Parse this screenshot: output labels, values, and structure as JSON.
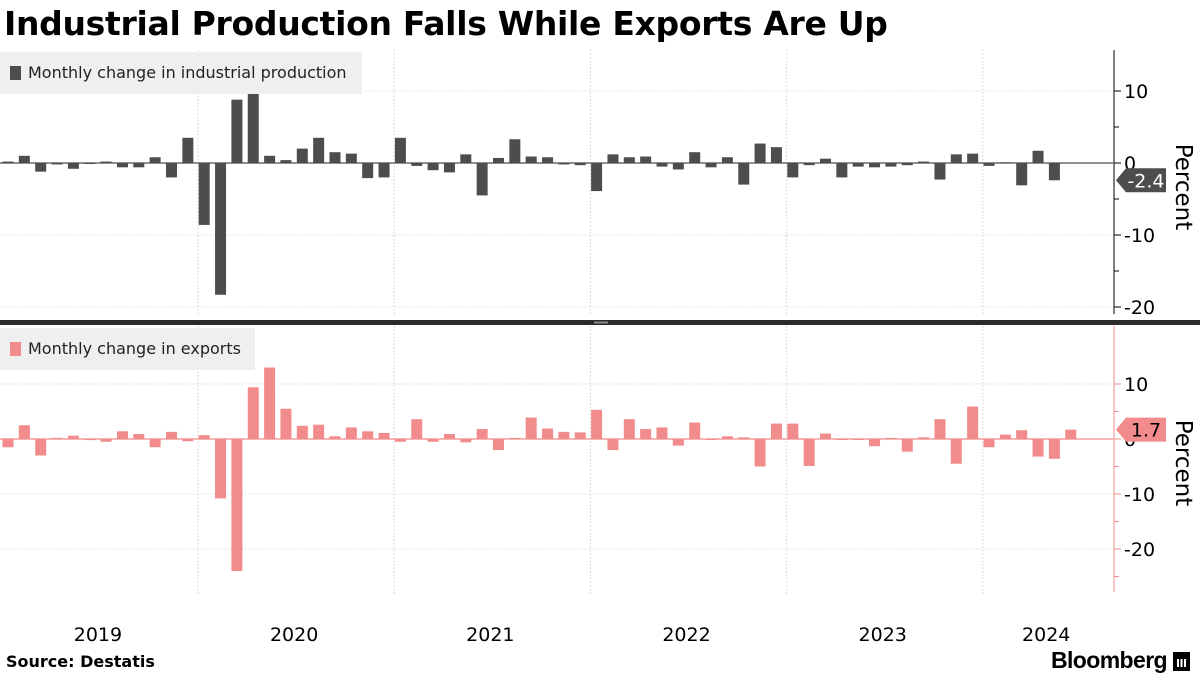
{
  "chart_data": {
    "title": "Industrial Production Falls While Exports Are Up",
    "source": "Source: Destatis",
    "brand": "Bloomberg",
    "type": "bar",
    "x_start": "2019-01",
    "x_labels": [
      "2019",
      "2020",
      "2021",
      "2022",
      "2023",
      "2024"
    ],
    "panels": [
      {
        "id": "ip",
        "legend": "Monthly change in industrial production",
        "color": "#4d4d4d",
        "ylabel": "Percent",
        "ylim": [
          -21,
          15
        ],
        "yticks": [
          10,
          0,
          -10,
          -20
        ],
        "last_value_label": "-2.4",
        "values": [
          0.2,
          1.0,
          -1.2,
          -0.2,
          -0.8,
          0.0,
          0.2,
          -0.6,
          -0.6,
          0.8,
          -2.0,
          3.5,
          -8.6,
          -18.3,
          8.8,
          10.2,
          1.0,
          0.4,
          2.0,
          3.5,
          1.5,
          1.3,
          -2.1,
          -2.0,
          3.5,
          -0.4,
          -1.0,
          -1.3,
          1.2,
          -4.5,
          0.7,
          3.3,
          0.9,
          0.8,
          -0.2,
          -0.3,
          -3.9,
          1.2,
          0.8,
          0.9,
          -0.5,
          -0.9,
          1.5,
          -0.6,
          0.8,
          -3.0,
          2.7,
          2.2,
          -2.0,
          -0.3,
          0.6,
          -2.0,
          -0.5,
          -0.6,
          -0.5,
          -0.3,
          0.2,
          -2.3,
          1.2,
          1.3,
          -0.4,
          0.1,
          -3.1,
          1.7,
          -2.4
        ]
      },
      {
        "id": "exp",
        "legend": "Monthly change in exports",
        "color": "#f28b8b",
        "ylabel": "Percent",
        "ylim": [
          -27,
          19
        ],
        "yticks": [
          10,
          0,
          -10,
          -20
        ],
        "last_value_label": "1.7",
        "values": [
          -1.5,
          2.5,
          -3.0,
          0.2,
          0.6,
          -0.2,
          -0.5,
          1.4,
          0.9,
          -1.5,
          1.3,
          -0.4,
          0.7,
          -10.8,
          -24.0,
          9.4,
          13.0,
          5.5,
          2.4,
          2.6,
          0.5,
          2.1,
          1.4,
          1.1,
          -0.5,
          3.6,
          -0.5,
          0.9,
          -0.6,
          1.8,
          -2.0,
          0.2,
          3.9,
          1.9,
          1.3,
          1.2,
          5.3,
          -2.0,
          3.6,
          1.8,
          2.1,
          -1.2,
          3.0,
          0.0,
          0.5,
          0.3,
          -5.0,
          2.8,
          2.8,
          -4.9,
          1.0,
          0.0,
          0.0,
          -1.3,
          0.2,
          -2.3,
          0.3,
          3.6,
          -4.5,
          5.9,
          -1.5,
          0.8,
          1.6,
          -3.2,
          -3.6,
          1.7
        ]
      }
    ]
  }
}
